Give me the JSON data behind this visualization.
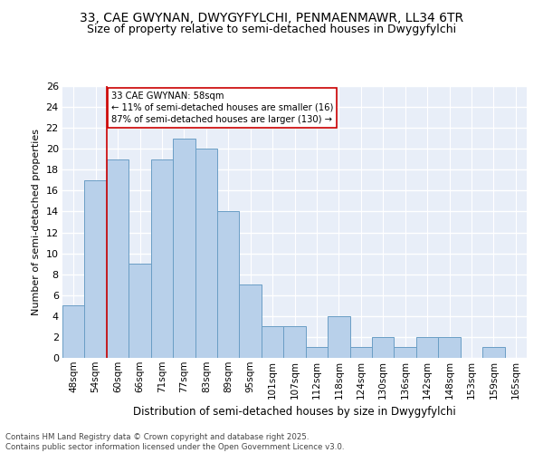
{
  "title1": "33, CAE GWYNAN, DWYGYFYLCHI, PENMAENMAWR, LL34 6TR",
  "title2": "Size of property relative to semi-detached houses in Dwygyfylchi",
  "xlabel": "Distribution of semi-detached houses by size in Dwygyfylchi",
  "ylabel": "Number of semi-detached properties",
  "categories": [
    "48sqm",
    "54sqm",
    "60sqm",
    "66sqm",
    "71sqm",
    "77sqm",
    "83sqm",
    "89sqm",
    "95sqm",
    "101sqm",
    "107sqm",
    "112sqm",
    "118sqm",
    "124sqm",
    "130sqm",
    "136sqm",
    "142sqm",
    "148sqm",
    "153sqm",
    "159sqm",
    "165sqm"
  ],
  "values": [
    5,
    17,
    19,
    9,
    19,
    21,
    20,
    14,
    7,
    3,
    3,
    1,
    4,
    1,
    2,
    1,
    2,
    2,
    0,
    1,
    0
  ],
  "bar_color": "#b8d0ea",
  "bar_edge_color": "#6a9ec5",
  "annotation_line1": "33 CAE GWYNAN: 58sqm",
  "annotation_line2": "← 11% of semi-detached houses are smaller (16)",
  "annotation_line3": "87% of semi-detached houses are larger (130) →",
  "annotation_box_color": "#ffffff",
  "annotation_border_color": "#cc0000",
  "ylim": [
    0,
    26
  ],
  "yticks": [
    0,
    2,
    4,
    6,
    8,
    10,
    12,
    14,
    16,
    18,
    20,
    22,
    24,
    26
  ],
  "background_color": "#e8eef8",
  "grid_color": "#ffffff",
  "footer_text": "Contains HM Land Registry data © Crown copyright and database right 2025.\nContains public sector information licensed under the Open Government Licence v3.0.",
  "red_line_color": "#cc0000",
  "title_fontsize": 10,
  "subtitle_fontsize": 9,
  "red_line_xindex": 2
}
